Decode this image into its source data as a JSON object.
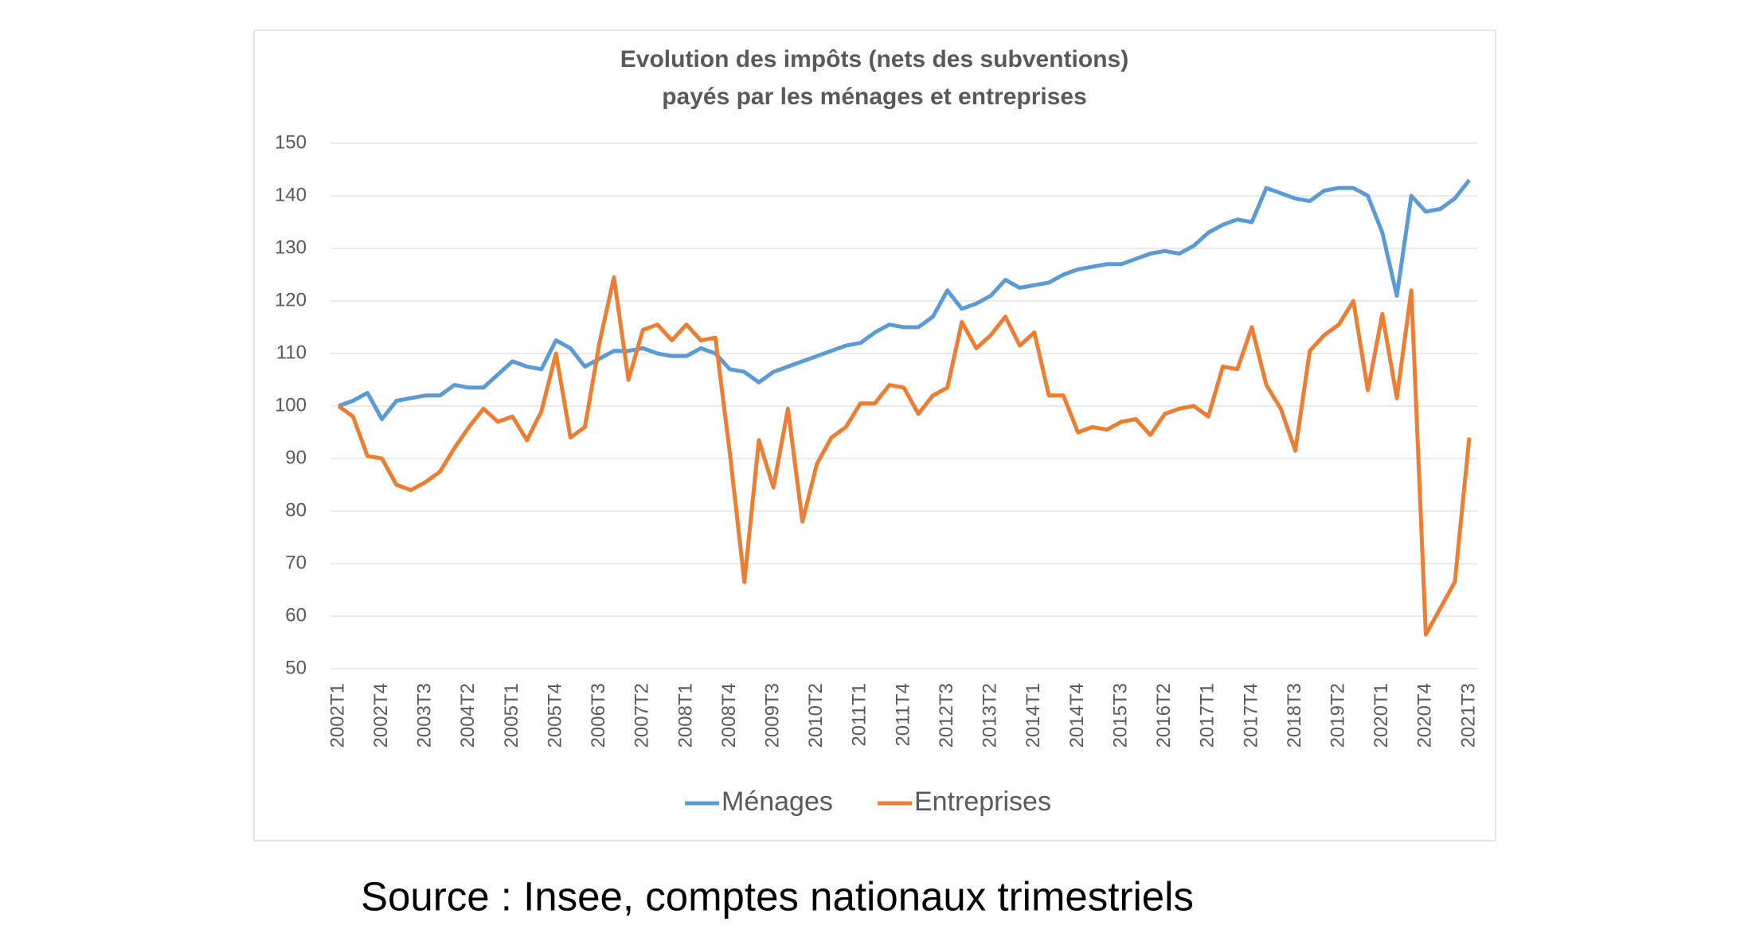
{
  "chart_data": {
    "type": "line",
    "title": [
      "Evolution des impôts (nets des subventions)",
      "payés par les ménages et entreprises"
    ],
    "categories": [
      "2002T1",
      null,
      null,
      "2002T4",
      null,
      null,
      "2003T3",
      null,
      null,
      "2004T2",
      null,
      null,
      "2005T1",
      null,
      null,
      "2005T4",
      null,
      null,
      "2006T3",
      null,
      null,
      "2007T2",
      null,
      null,
      "2008T1",
      null,
      null,
      "2008T4",
      null,
      null,
      "2009T3",
      null,
      null,
      "2010T2",
      null,
      null,
      "2011T1",
      null,
      null,
      "2011T4",
      null,
      null,
      "2012T3",
      null,
      null,
      "2013T2",
      null,
      null,
      "2014T1",
      null,
      null,
      "2014T4",
      null,
      null,
      "2015T3",
      null,
      null,
      "2016T2",
      null,
      null,
      "2017T1",
      null,
      null,
      "2017T4",
      null,
      null,
      "2018T3",
      null,
      null,
      "2019T2",
      null,
      null,
      "2020T1",
      null,
      null,
      "2020T4",
      null,
      null,
      "2021T3"
    ],
    "series": [
      {
        "name": "Ménages",
        "color": "#5b9bd5",
        "values": [
          100,
          101,
          102.5,
          97.5,
          101,
          101.5,
          102,
          102,
          104,
          103.5,
          103.5,
          106,
          108.5,
          107.5,
          107,
          112.5,
          111,
          107.5,
          109,
          110.5,
          110.5,
          111,
          110,
          109.5,
          109.5,
          111,
          110,
          107,
          106.5,
          104.5,
          106.5,
          107.5,
          108.5,
          109.5,
          110.5,
          111.5,
          112,
          114,
          115.5,
          115,
          115,
          117,
          122,
          118.5,
          119.5,
          121,
          124,
          122.5,
          123,
          123.5,
          125,
          126,
          126.5,
          127,
          127,
          128,
          129,
          129.5,
          129,
          130.5,
          133,
          134.5,
          135.5,
          135,
          141.5,
          140.5,
          139.5,
          139,
          141,
          141.5,
          141.5,
          140,
          133,
          121,
          140,
          137,
          137.5,
          139.5,
          143
        ]
      },
      {
        "name": "Entreprises",
        "color": "#ed7d31",
        "values": [
          100,
          98,
          90.5,
          90,
          85,
          84,
          85.5,
          87.5,
          92,
          96,
          99.5,
          97,
          98,
          93.5,
          99,
          110,
          94,
          96,
          112,
          124.5,
          105,
          114.5,
          115.5,
          112.5,
          115.5,
          112.5,
          113,
          91,
          66.5,
          93.5,
          84.5,
          99.5,
          78,
          89,
          94,
          96,
          100.5,
          100.5,
          104,
          103.5,
          98.5,
          102,
          103.5,
          116,
          111,
          113.5,
          117,
          111.5,
          114,
          102,
          102,
          95,
          96,
          95.5,
          97,
          97.5,
          94.5,
          98.5,
          99.5,
          100,
          98,
          107.5,
          107,
          115,
          104,
          99.5,
          91.5,
          110.5,
          113.5,
          115.5,
          120,
          103,
          117.5,
          101.5,
          122,
          56.5,
          61.5,
          66.5,
          94
        ]
      }
    ],
    "ylim": [
      50,
      150
    ],
    "yticks": [
      50,
      60,
      70,
      80,
      90,
      100,
      110,
      120,
      130,
      140,
      150
    ],
    "grid": true,
    "legend": "bottom",
    "source": "Source : Insee, comptes nationaux trimestriels"
  }
}
